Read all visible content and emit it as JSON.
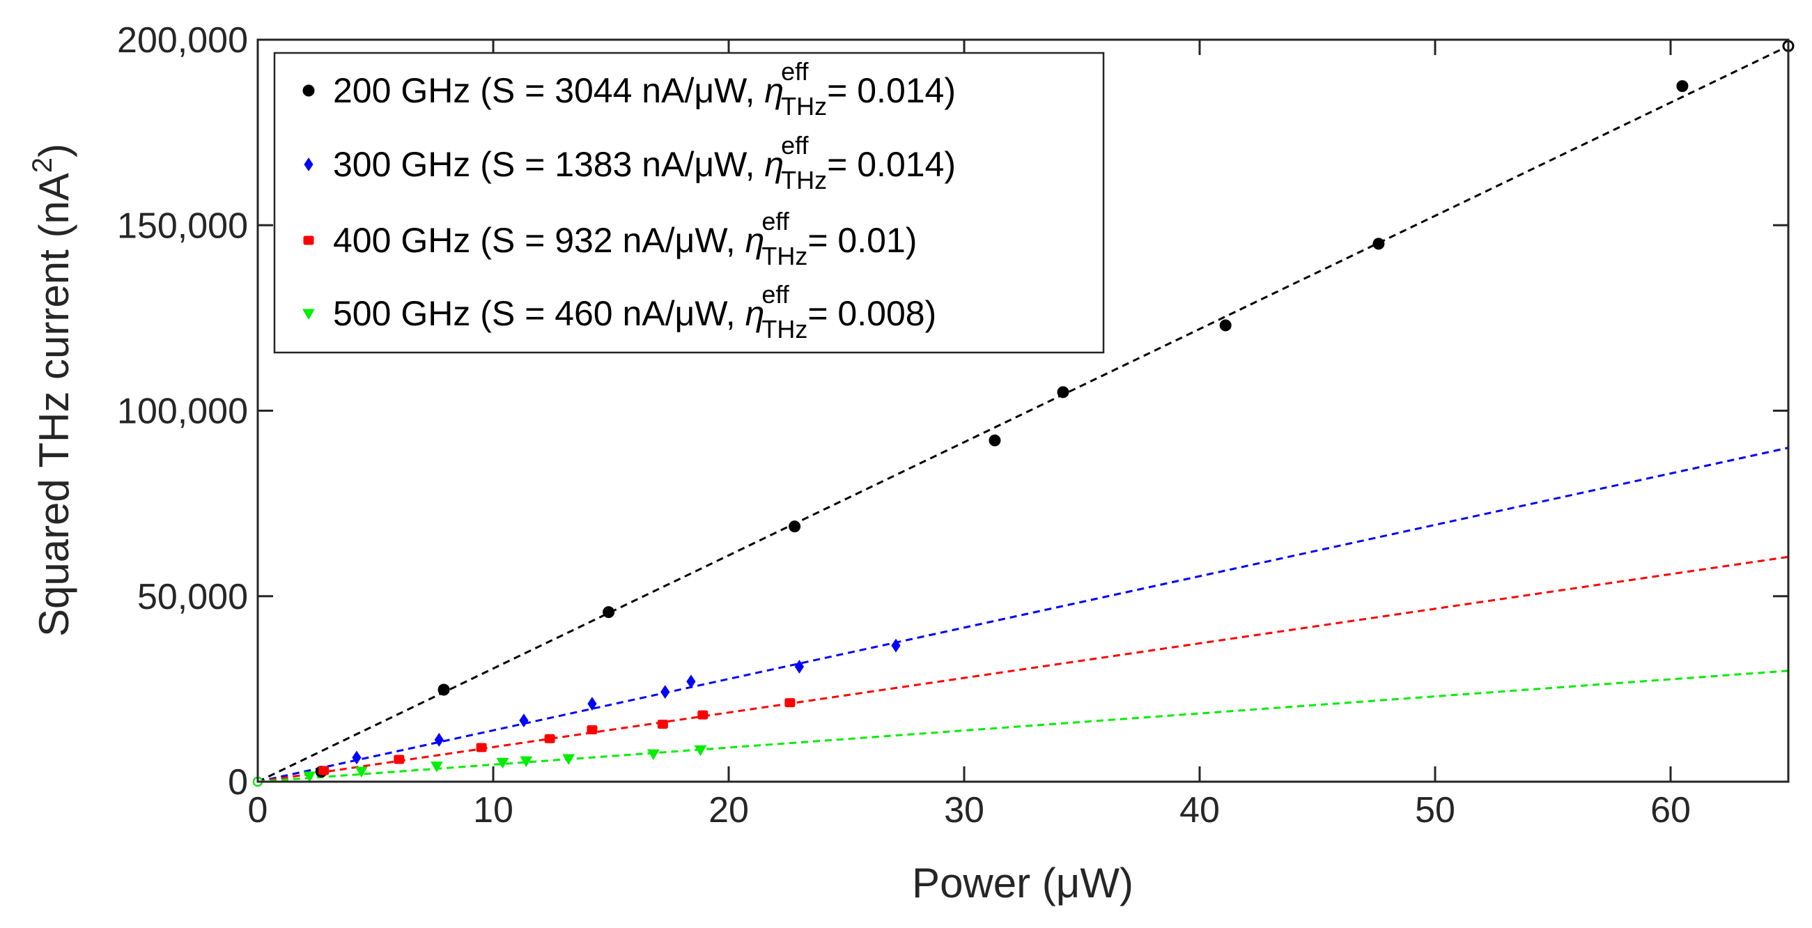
{
  "chart_data": {
    "type": "scatter",
    "title": "",
    "xlabel": "Power (μW)",
    "ylabel_main": "Squared THz current (nA",
    "ylabel_sup": "2",
    "ylabel_close": ")",
    "xlim": [
      0,
      65
    ],
    "ylim": [
      0,
      200000
    ],
    "xticks": [
      0,
      10,
      20,
      30,
      40,
      50,
      60
    ],
    "xtick_labels": [
      "0",
      "10",
      "20",
      "30",
      "40",
      "50",
      "60"
    ],
    "yticks": [
      0,
      50000,
      100000,
      150000,
      200000
    ],
    "ytick_labels": [
      "0",
      "50,000",
      "100,000",
      "150,000",
      "200,000"
    ],
    "grid": false,
    "legend_position": "top-left",
    "eta_symbol": "η",
    "eta_sup": "eff",
    "eta_sub": "THz",
    "series": [
      {
        "name": "200 GHz",
        "legend_prefix": "200 GHz (S = 3044 nA/μW, ",
        "legend_suffix": "= 0.014)",
        "color": "#000000",
        "marker": "circle",
        "slope": 3044,
        "x": [
          0,
          2.7,
          7.9,
          14.9,
          22.8,
          31.3,
          34.2,
          41.1,
          47.6,
          60.5,
          65.0
        ],
        "y": [
          0,
          2700,
          24800,
          45700,
          68800,
          92000,
          105000,
          123000,
          145000,
          187500,
          198300
        ]
      },
      {
        "name": "300 GHz",
        "legend_prefix": "300 GHz (S = 1383 nA/μW, ",
        "legend_suffix": "= 0.014)",
        "color": "#0000ff",
        "marker": "diamond",
        "slope": 1383,
        "x": [
          0,
          4.2,
          7.7,
          11.3,
          14.2,
          17.3,
          18.4,
          23.0,
          27.1
        ],
        "y": [
          0,
          6500,
          11300,
          16500,
          21000,
          24200,
          27000,
          31000,
          36700
        ]
      },
      {
        "name": "400 GHz",
        "legend_prefix": "400 GHz (S = 932 nA/μW, ",
        "legend_suffix": "= 0.01)",
        "color": "#ff0000",
        "marker": "square",
        "slope": 932,
        "x": [
          0,
          2.8,
          6.0,
          9.5,
          12.4,
          14.2,
          17.2,
          18.9,
          22.6
        ],
        "y": [
          0,
          3000,
          6000,
          9200,
          11600,
          14000,
          15500,
          18000,
          21300
        ]
      },
      {
        "name": "500 GHz",
        "legend_prefix": "500 GHz (S = 460 nA/μW, ",
        "legend_suffix": "= 0.008)",
        "color": "#00ee00",
        "marker": "triangle-down",
        "slope": 460,
        "x": [
          0,
          2.2,
          4.4,
          7.6,
          10.4,
          11.4,
          13.2,
          16.8,
          18.8
        ],
        "y": [
          0,
          1500,
          2800,
          4200,
          5200,
          5600,
          6200,
          7500,
          8600
        ]
      }
    ]
  }
}
